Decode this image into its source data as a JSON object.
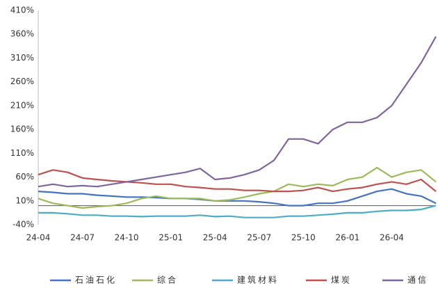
{
  "chart_data": {
    "type": "line",
    "categories": [
      "24-04",
      null,
      null,
      "24-07",
      null,
      null,
      "24-10",
      null,
      null,
      "25-01",
      null,
      null,
      "25-04",
      null,
      null,
      "25-07",
      null,
      null,
      "25-10",
      null,
      null,
      "26-01",
      null,
      null,
      "26-04",
      null,
      null,
      null
    ],
    "series": [
      {
        "name": "石油石化",
        "color": "#4472c4",
        "values": [
          30,
          28,
          25,
          25,
          22,
          20,
          18,
          18,
          17,
          15,
          15,
          13,
          10,
          10,
          10,
          8,
          5,
          0,
          0,
          5,
          5,
          10,
          20,
          30,
          35,
          25,
          20,
          5
        ]
      },
      {
        "name": "综合",
        "color": "#9bbb59",
        "values": [
          15,
          5,
          0,
          -5,
          -2,
          0,
          5,
          15,
          20,
          15,
          15,
          15,
          10,
          12,
          18,
          25,
          30,
          45,
          40,
          45,
          42,
          55,
          60,
          80,
          60,
          70,
          75,
          50
        ]
      },
      {
        "name": "建筑材料",
        "color": "#4bacc6",
        "values": [
          -15,
          -15,
          -17,
          -20,
          -20,
          -22,
          -22,
          -23,
          -22,
          -22,
          -22,
          -20,
          -23,
          -22,
          -25,
          -25,
          -25,
          -22,
          -22,
          -20,
          -18,
          -15,
          -15,
          -12,
          -10,
          -10,
          -8,
          0
        ]
      },
      {
        "name": "煤炭",
        "color": "#c0504d",
        "values": [
          65,
          75,
          70,
          58,
          55,
          52,
          50,
          48,
          45,
          45,
          40,
          38,
          35,
          35,
          32,
          32,
          30,
          30,
          32,
          38,
          30,
          35,
          38,
          45,
          50,
          45,
          55,
          30
        ]
      },
      {
        "name": "通信",
        "color": "#8064a2",
        "values": [
          40,
          45,
          40,
          42,
          40,
          45,
          50,
          55,
          60,
          65,
          70,
          78,
          55,
          58,
          65,
          75,
          95,
          140,
          140,
          130,
          160,
          175,
          175,
          185,
          210,
          255,
          300,
          355
        ]
      }
    ],
    "ylim": [
      -40,
      410
    ],
    "yticks": [
      {
        "value": -40,
        "label": "-40%"
      },
      {
        "value": 10,
        "label": "10%"
      },
      {
        "value": 60,
        "label": "60%"
      },
      {
        "value": 110,
        "label": "110%"
      },
      {
        "value": 160,
        "label": "160%"
      },
      {
        "value": 210,
        "label": "210%"
      },
      {
        "value": 260,
        "label": "260%"
      },
      {
        "value": 310,
        "label": "310%"
      },
      {
        "value": 360,
        "label": "360%"
      },
      {
        "value": 410,
        "label": "410%"
      }
    ],
    "grid": false,
    "legend": "bottom"
  }
}
